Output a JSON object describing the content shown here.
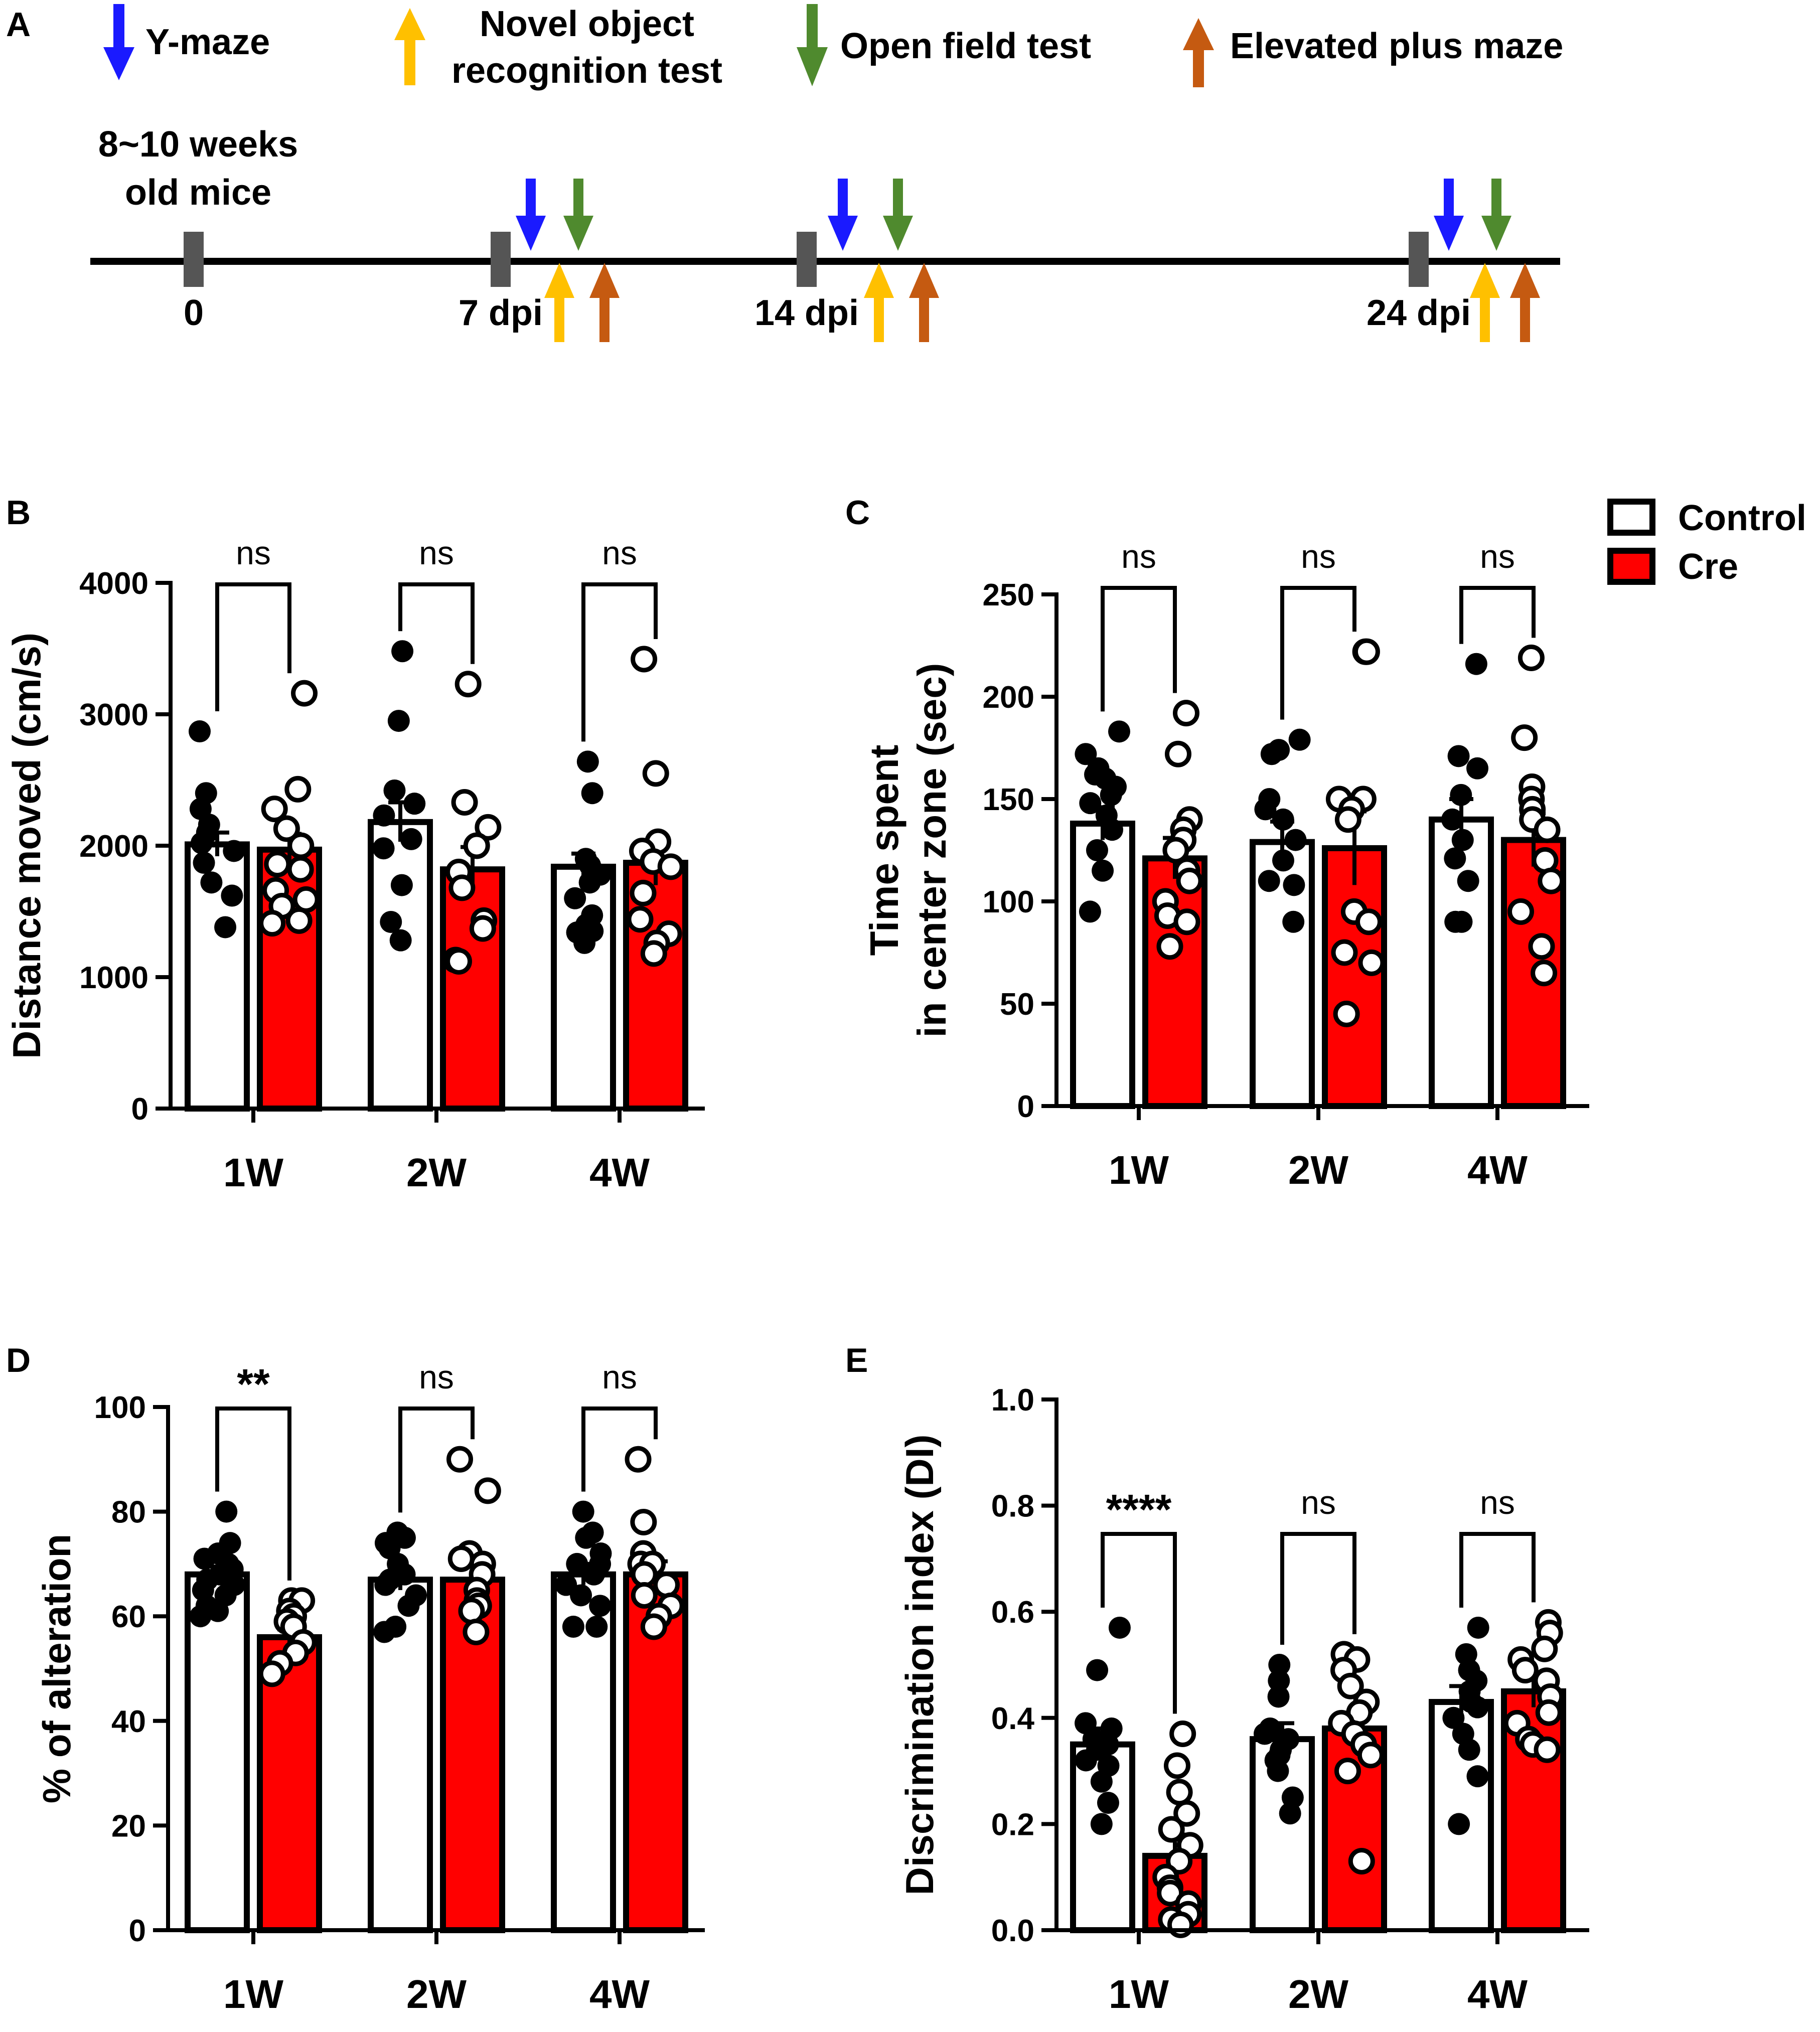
{
  "figure": {
    "panel_labels": [
      "A",
      "B",
      "C",
      "D",
      "E"
    ],
    "timeline": {
      "legend": [
        {
          "label": "Y-maze",
          "color": "#1a1aff",
          "direction": "down",
          "icon": "down-arrow-icon"
        },
        {
          "label": "Novel object recognition test",
          "label_lines": [
            "Novel object",
            "recognition test"
          ],
          "color": "#ffc000",
          "direction": "up",
          "icon": "up-arrow-icon"
        },
        {
          "label": "Open field test",
          "color": "#4f8a2e",
          "direction": "down",
          "icon": "down-arrow-icon"
        },
        {
          "label": "Elevated plus maze",
          "color": "#c55a11",
          "direction": "up",
          "icon": "up-arrow-icon"
        }
      ],
      "start_label_lines": [
        "8~10 weeks",
        "old mice"
      ],
      "ticks": [
        "0",
        "7 dpi",
        "14 dpi",
        "24 dpi"
      ]
    },
    "legend": {
      "control": "Control",
      "cre": "Cre",
      "control_color": "#ffffff",
      "cre_color": "#ff0000"
    }
  },
  "chart_data": [
    {
      "panel": "B",
      "type": "bar",
      "ylabel": "Distance moved (cm/s)",
      "categories": [
        "1W",
        "2W",
        "4W"
      ],
      "ylim": [
        0,
        4000
      ],
      "yticks": [
        0,
        1000,
        2000,
        3000,
        4000
      ],
      "series": [
        {
          "name": "Control",
          "color": "#ffffff",
          "values": [
            2010,
            2180,
            1840
          ],
          "errors": [
            90,
            150,
            100
          ],
          "points": [
            [
              2870,
              2400,
              2280,
              2160,
              2100,
              2020,
              1960,
              1870,
              1720,
              1620,
              1380
            ],
            [
              3480,
              2950,
              2420,
              2320,
              2230,
              2050,
              1980,
              1700,
              1420,
              1280
            ],
            [
              2640,
              2400,
              1900,
              1850,
              1780,
              1720,
              1600,
              1470,
              1400,
              1340,
              1350,
              1260
            ]
          ]
        },
        {
          "name": "Cre",
          "color": "#ff0000",
          "values": [
            1970,
            1820,
            1870
          ],
          "errors": [
            120,
            170,
            170
          ],
          "points": [
            [
              3160,
              2430,
              2280,
              2130,
              2000,
              1860,
              1820,
              1660,
              1590,
              1540,
              1430,
              1410
            ],
            [
              3230,
              2330,
              2140,
              2000,
              1800,
              1680,
              1430,
              1370,
              1130,
              1120
            ],
            [
              3420,
              2550,
              2030,
              1960,
              1880,
              1840,
              1640,
              1440,
              1330,
              1260,
              1180
            ]
          ]
        }
      ],
      "significance": [
        "ns",
        "ns",
        "ns"
      ]
    },
    {
      "panel": "C",
      "type": "bar",
      "ylabel": "Time spent in center zone (sec)",
      "ylabel_lines": [
        "Time spent",
        "in center zone (sec)"
      ],
      "categories": [
        "1W",
        "2W",
        "4W"
      ],
      "ylim": [
        0,
        250
      ],
      "yticks": [
        0,
        50,
        100,
        150,
        200,
        250
      ],
      "series": [
        {
          "name": "Control",
          "color": "#ffffff",
          "values": [
            138,
            129,
            140
          ],
          "errors": [
            8,
            10,
            10
          ],
          "points": [
            [
              183,
              172,
              165,
              162,
              160,
              156,
              152,
              148,
              142,
              135,
              125,
              115,
              95
            ],
            [
              179,
              174,
              172,
              150,
              145,
              140,
              130,
              120,
              110,
              108,
              90
            ],
            [
              216,
              171,
              165,
              152,
              140,
              130,
              121,
              110,
              90,
              90
            ]
          ]
        },
        {
          "name": "Cre",
          "color": "#ff0000",
          "values": [
            121,
            126,
            130
          ],
          "errors": [
            10,
            18,
            13
          ],
          "points": [
            [
              192,
              172,
              140,
              135,
              130,
              125,
              115,
              110,
              100,
              93,
              90,
              78
            ],
            [
              222,
              222,
              150,
              150,
              145,
              140,
              95,
              90,
              75,
              70,
              45
            ],
            [
              219,
              180,
              156,
              150,
              145,
              140,
              135,
              120,
              110,
              95,
              78,
              65
            ]
          ]
        }
      ],
      "significance": [
        "ns",
        "ns",
        "ns"
      ]
    },
    {
      "panel": "D",
      "type": "bar",
      "ylabel": "% of alteration",
      "categories": [
        "1W",
        "2W",
        "4W"
      ],
      "ylim": [
        0,
        100
      ],
      "yticks": [
        0,
        20,
        40,
        60,
        80,
        100
      ],
      "series": [
        {
          "name": "Control",
          "color": "#ffffff",
          "values": [
            68,
            67,
            68
          ],
          "errors": [
            1.5,
            2,
            2
          ],
          "points": [
            [
              80,
              74,
              72,
              71,
              70,
              69,
              68,
              67,
              66,
              65,
              64,
              62,
              61,
              60
            ],
            [
              76,
              75,
              74,
              73,
              70,
              68,
              67,
              66,
              64,
              62,
              58,
              57
            ],
            [
              80,
              76,
              75,
              72,
              70,
              70,
              69,
              68,
              66,
              64,
              62,
              58,
              58
            ]
          ]
        },
        {
          "name": "Cre",
          "color": "#ff0000",
          "values": [
            56,
            67,
            68
          ],
          "errors": [
            1.5,
            3,
            2.5
          ],
          "points": [
            [
              63,
              63,
              61,
              60,
              59,
              58,
              55,
              53,
              51,
              49
            ],
            [
              90,
              84,
              72,
              71,
              70,
              68,
              65,
              63,
              62,
              61,
              57
            ],
            [
              90,
              78,
              72,
              70,
              70,
              68,
              66,
              64,
              62,
              60,
              58
            ]
          ]
        }
      ],
      "significance": [
        "**",
        "ns",
        "ns"
      ]
    },
    {
      "panel": "E",
      "type": "bar",
      "ylabel": "Discrimination index (DI)",
      "categories": [
        "1W",
        "2W",
        "4W"
      ],
      "ylim": [
        0,
        1.0
      ],
      "yticks": [
        "0.0",
        "0.2",
        "0.4",
        "0.6",
        "0.8",
        "1.0"
      ],
      "series": [
        {
          "name": "Control",
          "color": "#ffffff",
          "values": [
            0.35,
            0.36,
            0.43
          ],
          "errors": [
            0.03,
            0.03,
            0.03
          ],
          "points": [
            [
              0.57,
              0.49,
              0.39,
              0.38,
              0.36,
              0.35,
              0.34,
              0.32,
              0.31,
              0.28,
              0.24,
              0.2
            ],
            [
              0.5,
              0.47,
              0.44,
              0.38,
              0.37,
              0.36,
              0.34,
              0.33,
              0.32,
              0.3,
              0.25,
              0.22
            ],
            [
              0.57,
              0.52,
              0.49,
              0.47,
              0.45,
              0.43,
              0.42,
              0.4,
              0.37,
              0.34,
              0.29,
              0.2
            ]
          ]
        },
        {
          "name": "Cre",
          "color": "#ff0000",
          "values": [
            0.14,
            0.38,
            0.45
          ],
          "errors": [
            0.04,
            0.03,
            0.03
          ],
          "points": [
            [
              0.37,
              0.31,
              0.26,
              0.22,
              0.19,
              0.16,
              0.13,
              0.1,
              0.08,
              0.07,
              0.05,
              0.03,
              0.02,
              0.01
            ],
            [
              0.52,
              0.51,
              0.49,
              0.46,
              0.43,
              0.41,
              0.39,
              0.37,
              0.35,
              0.33,
              0.3,
              0.13
            ],
            [
              0.58,
              0.56,
              0.53,
              0.51,
              0.49,
              0.47,
              0.44,
              0.41,
              0.39,
              0.36,
              0.35,
              0.34
            ]
          ]
        }
      ],
      "significance": [
        "****",
        "ns",
        "ns"
      ]
    }
  ]
}
